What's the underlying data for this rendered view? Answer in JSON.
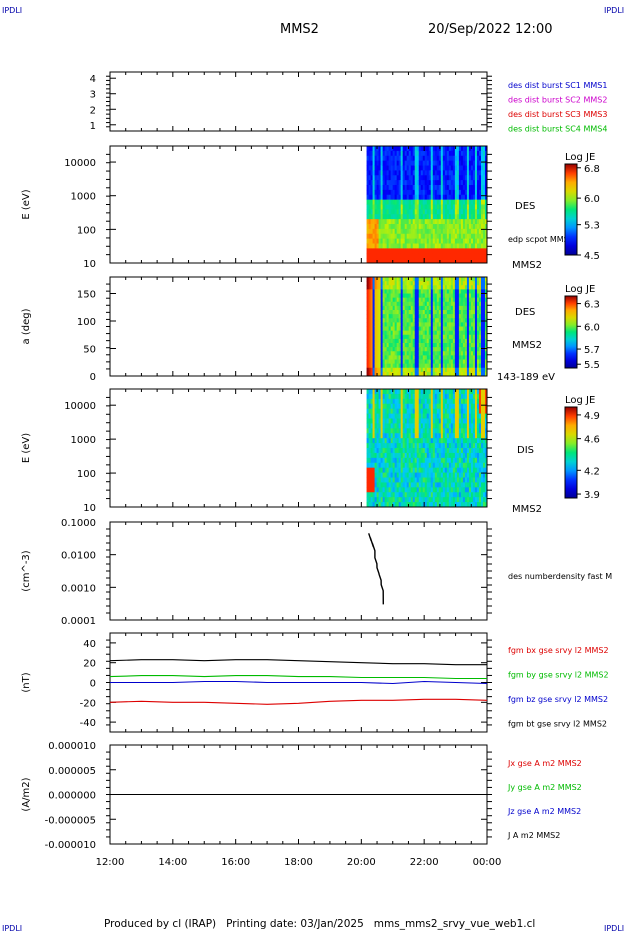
{
  "corners": {
    "tl": "IPDLI",
    "tr": "IPDLI",
    "bl": "IPDLI",
    "br": "IPDLI"
  },
  "header": {
    "title": "MMS2",
    "datetime": "20/Sep/2022 12:00"
  },
  "footer": {
    "text": "Produced by cl (IRAP)   Printing date: 03/Jan/2025   mms_mms2_srvy_vue_web1.cl"
  },
  "colors": {
    "mms1": "#0000cc",
    "mms2": "#cc00cc",
    "mms3": "#dd0000",
    "mms4": "#00bb00",
    "bx": "#dd0000",
    "by": "#00bb00",
    "bz": "#0000cc",
    "bt": "#000000"
  },
  "chart_data": [
    {
      "id": "panel1",
      "type": "line",
      "ylabel": "",
      "yticks": [
        "1",
        "2",
        "3",
        "4"
      ],
      "ylim": [
        0.6,
        4.4
      ],
      "legend": [
        "des dist burst SC1 MMS1",
        "des dist burst SC2 MMS2",
        "des dist burst SC3 MMS3",
        "des dist burst SC4 MMS4"
      ],
      "series": []
    },
    {
      "id": "panel2",
      "type": "heatmap",
      "ylabel": "E (eV)",
      "yscale": "log",
      "ylim": [
        10,
        30000
      ],
      "yticks": [
        "10",
        "100",
        "1000",
        "10000"
      ],
      "data_start": "20:10",
      "data_end": "00:00",
      "right_labels": [
        "DES",
        "edp scpot MMS2",
        "MMS2"
      ],
      "colorbar": {
        "title": "Log JE",
        "ticks": [
          "6.8",
          "6.0",
          "5.3",
          "4.5"
        ],
        "range": [
          4.5,
          6.9
        ]
      }
    },
    {
      "id": "panel3",
      "type": "heatmap",
      "ylabel": "a (deg)",
      "ylim": [
        0,
        180
      ],
      "yticks": [
        "0",
        "50",
        "100",
        "150"
      ],
      "data_start": "20:10",
      "data_end": "00:00",
      "right_labels": [
        "DES",
        "MMS2",
        "143-189 eV"
      ],
      "colorbar": {
        "title": "Log JE",
        "ticks": [
          "6.3",
          "6.0",
          "5.7",
          "5.5"
        ],
        "range": [
          5.45,
          6.4
        ]
      }
    },
    {
      "id": "panel4",
      "type": "heatmap",
      "ylabel": "E (eV)",
      "yscale": "log",
      "ylim": [
        10,
        30000
      ],
      "yticks": [
        "10",
        "100",
        "1000",
        "10000"
      ],
      "data_start": "20:10",
      "data_end": "00:00",
      "right_labels": [
        "DIS",
        "MMS2"
      ],
      "colorbar": {
        "title": "Log JE",
        "ticks": [
          "4.9",
          "4.6",
          "4.2",
          "3.9"
        ],
        "range": [
          3.85,
          5.0
        ]
      }
    },
    {
      "id": "panel5",
      "type": "line",
      "ylabel": "(cm^-3)",
      "yscale": "log",
      "ylim": [
        0.0001,
        0.1
      ],
      "yticks": [
        "0.0001",
        "0.0010",
        "0.0100",
        "0.1000"
      ],
      "legend": [
        "des numberdensity fast M"
      ],
      "series": [
        {
          "name": "des numberdensity fast M",
          "x": [
            "20:14",
            "20:18",
            "20:22",
            "20:26",
            "20:30",
            "20:34",
            "20:38",
            "20:42"
          ],
          "y": [
            0.045,
            0.03,
            0.02,
            0.008,
            0.004,
            0.0025,
            0.0012,
            0.0003
          ]
        }
      ]
    },
    {
      "id": "panel6",
      "type": "line",
      "ylabel": "(nT)",
      "ylim": [
        -50,
        50
      ],
      "yticks": [
        "-40",
        "-20",
        "0",
        "20",
        "40"
      ],
      "legend": [
        "fgm bx gse srvy l2 MMS2",
        "fgm by gse srvy l2 MMS2",
        "fgm bz gse srvy l2 MMS2",
        "fgm bt gse srvy l2 MMS2"
      ],
      "x": [
        "12:00",
        "13:00",
        "14:00",
        "15:00",
        "16:00",
        "17:00",
        "18:00",
        "19:00",
        "20:00",
        "21:00",
        "22:00",
        "23:00",
        "00:00"
      ],
      "series": [
        {
          "name": "fgm bx gse srvy l2 MMS2",
          "values": [
            -20,
            -19,
            -20,
            -20,
            -21,
            -22,
            -21,
            -19,
            -18,
            -18,
            -17,
            -17,
            -18
          ]
        },
        {
          "name": "fgm by gse srvy l2 MMS2",
          "values": [
            6,
            7,
            7,
            6,
            7,
            7,
            6,
            6,
            5,
            5,
            5,
            4,
            4
          ]
        },
        {
          "name": "fgm bz gse srvy l2 MMS2",
          "values": [
            0,
            0,
            0,
            1,
            1,
            0,
            0,
            0,
            0,
            -1,
            1,
            0,
            -1
          ]
        },
        {
          "name": "fgm bt gse srvy l2 MMS2",
          "values": [
            22,
            23,
            23,
            22,
            23,
            23,
            22,
            21,
            20,
            19,
            19,
            18,
            18
          ]
        }
      ]
    },
    {
      "id": "panel7",
      "type": "line",
      "ylabel": "(A/m2)",
      "ylim": [
        -1e-05,
        1e-05
      ],
      "yticks": [
        "-0.000010",
        "-0.000005",
        "0.000000",
        "0.000005",
        "0.000010"
      ],
      "legend": [
        "Jx gse A m2 MMS2",
        "Jy gse A m2 MMS2",
        "Jz gse A m2 MMS2",
        "J A m2 MMS2"
      ],
      "x": [
        "12:00",
        "00:00"
      ],
      "series": [
        {
          "name": "J A m2 MMS2",
          "values": [
            0,
            0
          ]
        }
      ]
    }
  ],
  "xaxis": {
    "ticks": [
      "12:00",
      "14:00",
      "16:00",
      "18:00",
      "20:00",
      "22:00",
      "00:00"
    ]
  }
}
